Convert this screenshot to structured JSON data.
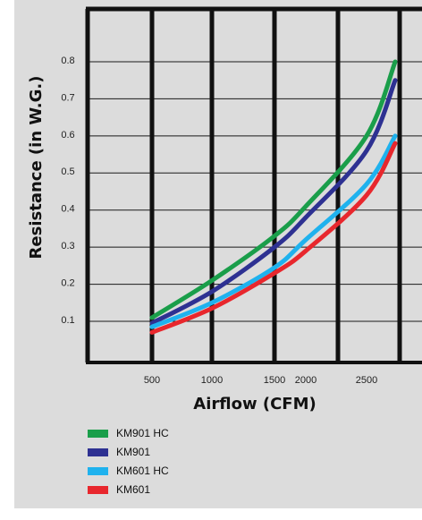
{
  "chart_data": {
    "type": "line",
    "xlabel": "Airflow (CFM)",
    "ylabel": "Resistance (in W.G.)",
    "x_ticks": [
      {
        "value": 500,
        "label": "500"
      },
      {
        "value": 1000,
        "label": "1000"
      },
      {
        "value": 1500,
        "label": "1500"
      },
      {
        "value": 2000,
        "label": "2000"
      },
      {
        "value": 2500,
        "label": "2500"
      }
    ],
    "y_ticks": [
      {
        "value": 0.1,
        "label": "0.1"
      },
      {
        "value": 0.2,
        "label": "0.2"
      },
      {
        "value": 0.3,
        "label": "0.3"
      },
      {
        "value": 0.4,
        "label": "0.4"
      },
      {
        "value": 0.5,
        "label": "0.5"
      },
      {
        "value": 0.6,
        "label": "0.6"
      },
      {
        "value": 0.7,
        "label": "0.7"
      },
      {
        "value": 0.8,
        "label": "0.8"
      }
    ],
    "legend_position": "bottom-left",
    "grid": true,
    "series": [
      {
        "name": "KM901 HC",
        "color": "#1a9e4a",
        "points": [
          [
            500,
            0.11
          ],
          [
            1000,
            0.21
          ],
          [
            1500,
            0.33
          ],
          [
            2000,
            0.41
          ],
          [
            2500,
            0.6
          ],
          [
            2800,
            0.8
          ]
        ]
      },
      {
        "name": "KM901",
        "color": "#2e3192",
        "points": [
          [
            500,
            0.095
          ],
          [
            1000,
            0.18
          ],
          [
            1500,
            0.3
          ],
          [
            2000,
            0.38
          ],
          [
            2500,
            0.56
          ],
          [
            2800,
            0.75
          ]
        ]
      },
      {
        "name": "KM601 HC",
        "color": "#1fb2ee",
        "points": [
          [
            500,
            0.085
          ],
          [
            1000,
            0.15
          ],
          [
            1500,
            0.245
          ],
          [
            2000,
            0.32
          ],
          [
            2500,
            0.47
          ],
          [
            2800,
            0.6
          ]
        ]
      },
      {
        "name": "KM601",
        "color": "#e8272d",
        "points": [
          [
            500,
            0.07
          ],
          [
            1000,
            0.135
          ],
          [
            1500,
            0.23
          ],
          [
            2000,
            0.29
          ],
          [
            2500,
            0.44
          ],
          [
            2800,
            0.58
          ]
        ]
      }
    ]
  }
}
